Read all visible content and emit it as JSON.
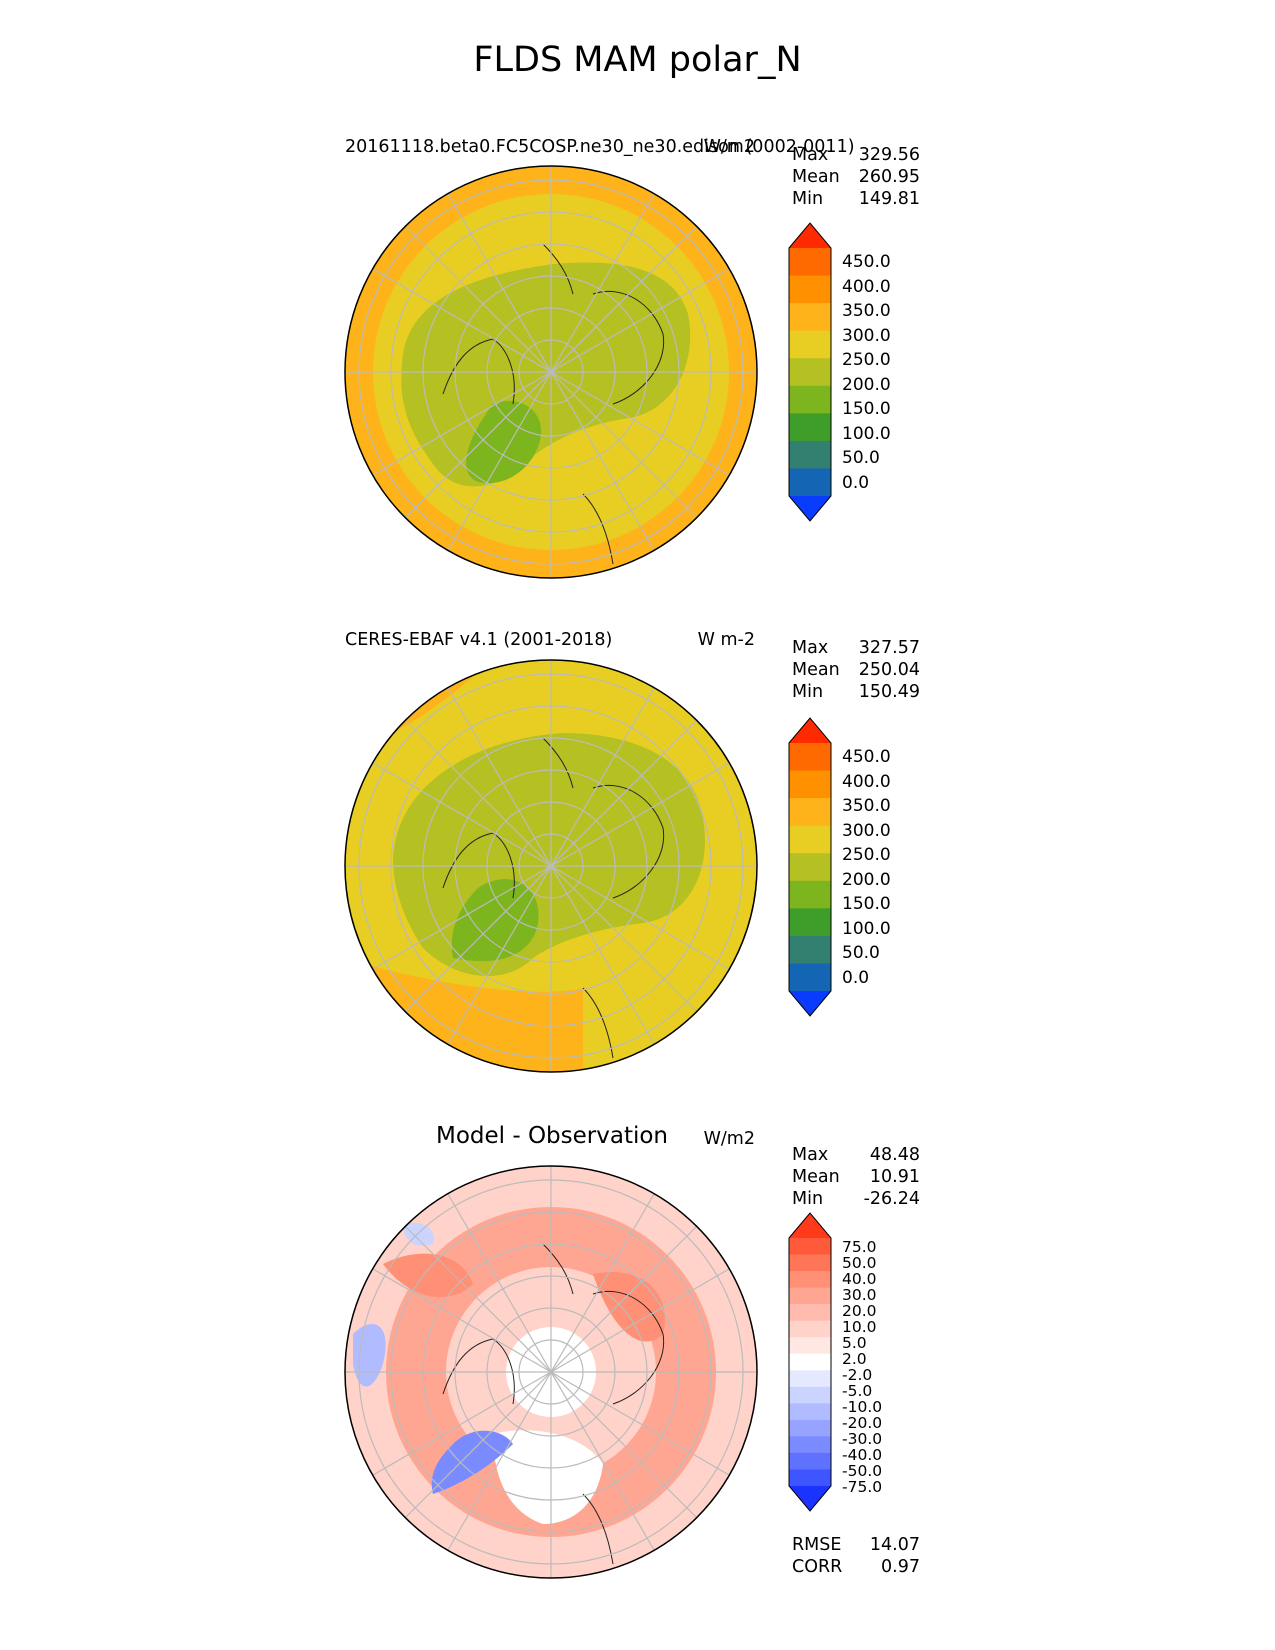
{
  "figure_title": "FLDS MAM polar_N",
  "panels": [
    {
      "title": "20161118.beta0.FC5COSP.ne30_ne30.edison (0002-0011)",
      "units": "W/m2",
      "stats": {
        "max_label": "Max",
        "max": "329.56",
        "mean_label": "Mean",
        "mean": "260.95",
        "min_label": "Min",
        "min": "149.81"
      },
      "colorbar": {
        "labels": [
          "450.0",
          "400.0",
          "350.0",
          "300.0",
          "250.0",
          "200.0",
          "150.0",
          "100.0",
          "50.0",
          "0.0"
        ],
        "colors": [
          "#ff2a00",
          "#ff6a00",
          "#ff9100",
          "#ffb31a",
          "#e8ce22",
          "#b5c023",
          "#7db51e",
          "#3f9e2a",
          "#338070",
          "#1466b4",
          "#0a3cff"
        ]
      }
    },
    {
      "title": "CERES-EBAF v4.1 (2001-2018)",
      "units": "W m-2",
      "stats": {
        "max_label": "Max",
        "max": "327.57",
        "mean_label": "Mean",
        "mean": "250.04",
        "min_label": "Min",
        "min": "150.49"
      },
      "colorbar": {
        "labels": [
          "450.0",
          "400.0",
          "350.0",
          "300.0",
          "250.0",
          "200.0",
          "150.0",
          "100.0",
          "50.0",
          "0.0"
        ],
        "colors": [
          "#ff2a00",
          "#ff6a00",
          "#ff9100",
          "#ffb31a",
          "#e8ce22",
          "#b5c023",
          "#7db51e",
          "#3f9e2a",
          "#338070",
          "#1466b4",
          "#0a3cff"
        ]
      }
    },
    {
      "title": "Model - Observation",
      "units": "W/m2",
      "stats": {
        "max_label": "Max",
        "max": "48.48",
        "mean_label": "Mean",
        "mean": "10.91",
        "min_label": "Min",
        "min": "-26.24"
      },
      "colorbar": {
        "labels": [
          "75.0",
          "50.0",
          "40.0",
          "30.0",
          "20.0",
          "10.0",
          "5.0",
          "2.0",
          "-2.0",
          "-5.0",
          "-10.0",
          "-20.0",
          "-30.0",
          "-40.0",
          "-50.0",
          "-75.0"
        ],
        "colors": [
          "#ff3a1a",
          "#ff5a3a",
          "#ff7558",
          "#ff8f75",
          "#ffa692",
          "#ffbcae",
          "#ffd3ca",
          "#ffe7e2",
          "#ffffff",
          "#e4e9ff",
          "#cbd4ff",
          "#b0bcff",
          "#96a4ff",
          "#7a8bff",
          "#5e72ff",
          "#3f55ff",
          "#1a33ff"
        ]
      },
      "metrics": {
        "rmse_label": "RMSE",
        "rmse": "14.07",
        "corr_label": "CORR",
        "corr": "0.97"
      }
    }
  ],
  "chart_data": [
    {
      "type": "heatmap",
      "projection": "north polar stereographic",
      "title": "20161118.beta0.FC5COSP.ne30_ne30.edison (0002-0011)",
      "units": "W/m2",
      "max": 329.56,
      "mean": 260.95,
      "min": 149.81,
      "levels": [
        0,
        50,
        100,
        150,
        200,
        250,
        300,
        350,
        400,
        450
      ]
    },
    {
      "type": "heatmap",
      "projection": "north polar stereographic",
      "title": "CERES-EBAF v4.1 (2001-2018)",
      "units": "W m-2",
      "max": 327.57,
      "mean": 250.04,
      "min": 150.49,
      "levels": [
        0,
        50,
        100,
        150,
        200,
        250,
        300,
        350,
        400,
        450
      ]
    },
    {
      "type": "heatmap",
      "projection": "north polar stereographic",
      "title": "Model - Observation",
      "units": "W/m2",
      "max": 48.48,
      "mean": 10.91,
      "min": -26.24,
      "rmse": 14.07,
      "corr": 0.97,
      "levels": [
        -75,
        -50,
        -40,
        -30,
        -20,
        -10,
        -5,
        -2,
        2,
        5,
        10,
        20,
        30,
        40,
        50,
        75
      ]
    }
  ]
}
